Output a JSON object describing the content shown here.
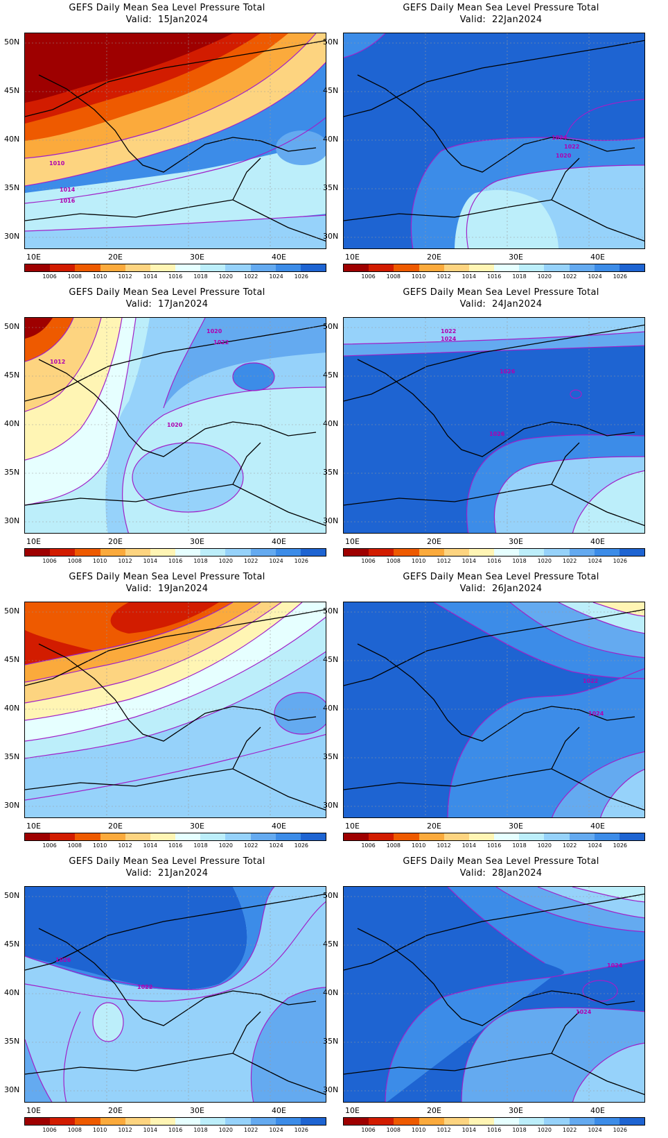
{
  "title_line1": "GEFS Daily Mean Sea Level Pressure Total",
  "valid_prefix": "Valid:",
  "panels": [
    {
      "id": "p1",
      "date": "15Jan2024"
    },
    {
      "id": "p2",
      "date": "22Jan2024"
    },
    {
      "id": "p3",
      "date": "17Jan2024"
    },
    {
      "id": "p4",
      "date": "24Jan2024"
    },
    {
      "id": "p5",
      "date": "19Jan2024"
    },
    {
      "id": "p6",
      "date": "26Jan2024"
    },
    {
      "id": "p7",
      "date": "21Jan2024"
    },
    {
      "id": "p8",
      "date": "28Jan2024"
    }
  ],
  "lat_labels": [
    "50N",
    "45N",
    "40N",
    "35N",
    "30N"
  ],
  "lon_labels": [
    "10E",
    "20E",
    "30E",
    "40E"
  ],
  "colorbar": {
    "ticks": [
      "1006",
      "1008",
      "1010",
      "1012",
      "1014",
      "1016",
      "1018",
      "1020",
      "1022",
      "1024",
      "1026"
    ],
    "colors": [
      "#9e0000",
      "#d21c00",
      "#ee5a00",
      "#fbaa3c",
      "#fdd480",
      "#fff5b4",
      "#e6ffff",
      "#bceefa",
      "#96d2fa",
      "#64aaf0",
      "#3c8ce8",
      "#1e64d2"
    ]
  },
  "contour_labels": {
    "p1": [
      "1010",
      "1014",
      "1016"
    ],
    "p2": [
      "1024",
      "1022",
      "1020"
    ],
    "p3": [
      "1020",
      "1022",
      "1012",
      "1020"
    ],
    "p4": [
      "1022",
      "1024",
      "1026",
      "1026"
    ],
    "p5": [],
    "p6": [
      "1022",
      "1024"
    ],
    "p7": [
      "1026",
      "1022"
    ],
    "p8": [
      "1024",
      "1024"
    ]
  },
  "colors": {
    "contour": "#a020c8",
    "coast": "#000000",
    "grid": "#9a9a9a"
  }
}
